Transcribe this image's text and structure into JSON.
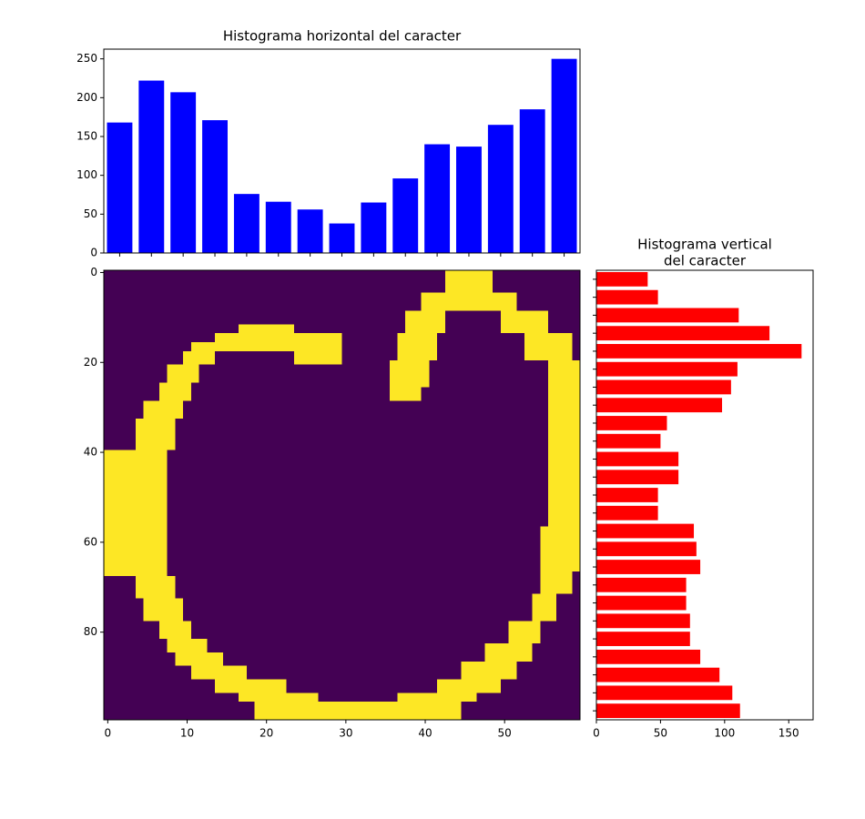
{
  "chart_data": [
    {
      "type": "bar",
      "title": "Histograma horizontal del caracter",
      "categories": [
        null,
        null,
        null,
        null,
        null,
        null,
        null,
        null,
        null,
        null,
        null,
        null,
        null,
        null,
        null
      ],
      "values": [
        168,
        222,
        207,
        171,
        76,
        66,
        56,
        38,
        65,
        96,
        140,
        137,
        165,
        185,
        250
      ],
      "color": "#0000ff",
      "ylim": [
        0,
        262.5
      ],
      "yticks": [
        0,
        50,
        100,
        150,
        200,
        250
      ]
    },
    {
      "type": "image",
      "background": "#440154",
      "color": "#fde725",
      "xlim": [
        -0.5,
        59.5
      ],
      "ylim": [
        99.5,
        -0.5
      ],
      "xticks": [
        0,
        10,
        20,
        30,
        40,
        50
      ],
      "yticks": [
        0,
        20,
        40,
        60,
        80
      ],
      "regions": [
        {
          "rows": [
            12,
            14
          ],
          "cols": [
            17,
            24
          ]
        },
        {
          "rows": [
            14,
            16
          ],
          "cols": [
            14,
            30
          ]
        },
        {
          "rows": [
            16,
            18
          ],
          "cols": [
            11,
            30
          ]
        },
        {
          "rows": [
            18,
            21
          ],
          "cols": [
            10,
            14
          ]
        },
        {
          "rows": [
            18,
            21
          ],
          "cols": [
            24,
            30
          ]
        },
        {
          "rows": [
            21,
            25
          ],
          "cols": [
            8,
            12
          ]
        },
        {
          "rows": [
            25,
            29
          ],
          "cols": [
            7,
            11
          ]
        },
        {
          "rows": [
            29,
            33
          ],
          "cols": [
            5,
            10
          ]
        },
        {
          "rows": [
            33,
            40
          ],
          "cols": [
            4,
            9
          ]
        },
        {
          "rows": [
            40,
            68
          ],
          "cols": [
            0,
            8
          ]
        },
        {
          "rows": [
            68,
            73
          ],
          "cols": [
            4,
            9
          ]
        },
        {
          "rows": [
            73,
            78
          ],
          "cols": [
            5,
            10
          ]
        },
        {
          "rows": [
            78,
            82
          ],
          "cols": [
            7,
            11
          ]
        },
        {
          "rows": [
            82,
            85
          ],
          "cols": [
            8,
            13
          ]
        },
        {
          "rows": [
            85,
            88
          ],
          "cols": [
            9,
            15
          ]
        },
        {
          "rows": [
            88,
            91
          ],
          "cols": [
            11,
            18
          ]
        },
        {
          "rows": [
            91,
            94
          ],
          "cols": [
            14,
            23
          ]
        },
        {
          "rows": [
            94,
            96
          ],
          "cols": [
            17,
            27
          ]
        },
        {
          "rows": [
            96,
            100
          ],
          "cols": [
            19,
            45
          ]
        },
        {
          "rows": [
            94,
            96
          ],
          "cols": [
            37,
            47
          ]
        },
        {
          "rows": [
            91,
            94
          ],
          "cols": [
            42,
            50
          ]
        },
        {
          "rows": [
            87,
            91
          ],
          "cols": [
            45,
            52
          ]
        },
        {
          "rows": [
            83,
            87
          ],
          "cols": [
            48,
            54
          ]
        },
        {
          "rows": [
            78,
            83
          ],
          "cols": [
            51,
            55
          ]
        },
        {
          "rows": [
            72,
            78
          ],
          "cols": [
            54,
            57
          ]
        },
        {
          "rows": [
            67,
            72
          ],
          "cols": [
            55,
            59
          ]
        },
        {
          "rows": [
            57,
            67
          ],
          "cols": [
            55,
            60
          ]
        },
        {
          "rows": [
            20,
            57
          ],
          "cols": [
            56,
            60
          ]
        },
        {
          "rows": [
            14,
            20
          ],
          "cols": [
            53,
            59
          ]
        },
        {
          "rows": [
            9,
            14
          ],
          "cols": [
            50,
            56
          ]
        },
        {
          "rows": [
            0,
            5
          ],
          "cols": [
            43,
            49
          ]
        },
        {
          "rows": [
            5,
            9
          ],
          "cols": [
            40,
            52
          ]
        },
        {
          "rows": [
            9,
            14
          ],
          "cols": [
            38,
            43
          ]
        },
        {
          "rows": [
            14,
            20
          ],
          "cols": [
            37,
            42
          ]
        },
        {
          "rows": [
            20,
            26
          ],
          "cols": [
            36,
            41
          ]
        },
        {
          "rows": [
            26,
            29
          ],
          "cols": [
            36,
            40
          ]
        }
      ]
    },
    {
      "type": "barh",
      "title": [
        "Histograma vertical",
        "del caracter"
      ],
      "categories": [
        null,
        null,
        null,
        null,
        null,
        null,
        null,
        null,
        null,
        null,
        null,
        null,
        null,
        null,
        null,
        null,
        null,
        null,
        null,
        null,
        null,
        null,
        null,
        null,
        null
      ],
      "values": [
        40,
        48,
        111,
        135,
        160,
        110,
        105,
        98,
        55,
        50,
        64,
        64,
        48,
        48,
        76,
        78,
        81,
        70,
        70,
        73,
        73,
        81,
        96,
        106,
        112
      ],
      "color": "#ff0000",
      "xlim": [
        0,
        169
      ],
      "xticks": [
        0,
        50,
        100,
        150
      ]
    }
  ]
}
